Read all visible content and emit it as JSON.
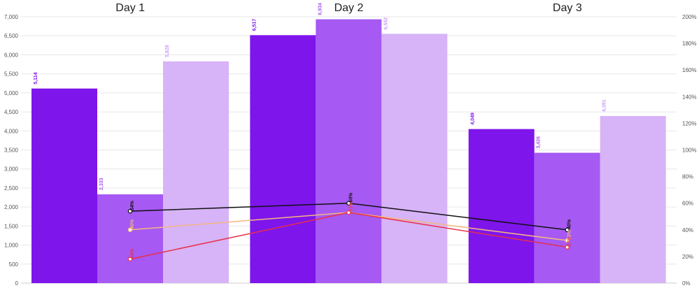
{
  "chart_data": {
    "type": "bar",
    "categories": [
      "Day 1",
      "Day 2",
      "Day 3"
    ],
    "bar_series": [
      {
        "values": [
          5114,
          6517,
          4049
        ],
        "labels": [
          "5,114",
          "6,517",
          "4,049"
        ],
        "color": "#7e15eb"
      },
      {
        "values": [
          2333,
          6934,
          3426
        ],
        "labels": [
          "2,333",
          "6,934",
          "3,426"
        ],
        "color": "#a659f3"
      },
      {
        "values": [
          5828,
          6552,
          4391
        ],
        "labels": [
          "5,828",
          "6,552",
          "4,391"
        ],
        "color": "#d7b3f7"
      }
    ],
    "line_series": [
      {
        "values": [
          54,
          60,
          40
        ],
        "labels": [
          "54%",
          "60%",
          "40%"
        ],
        "color": "#111111"
      },
      {
        "values": [
          40,
          53,
          32
        ],
        "labels": [
          "40%",
          "53%",
          "32%"
        ],
        "color": "#f3b77f"
      },
      {
        "values": [
          18,
          53,
          27
        ],
        "labels": [
          "18%",
          "53%",
          "27%"
        ],
        "color": "#e8304a"
      }
    ],
    "y_left": {
      "ylim": [
        0,
        7000
      ],
      "ticks": [
        "0",
        "500",
        "1,000",
        "1,500",
        "2,000",
        "2,500",
        "3,000",
        "3,500",
        "4,000",
        "4,500",
        "5,000",
        "5,500",
        "6,000",
        "6,500",
        "7,000"
      ]
    },
    "y_right": {
      "ylim": [
        0,
        200
      ],
      "ticks": [
        "0%",
        "20%",
        "40%",
        "60%",
        "80%",
        "100%",
        "120%",
        "140%",
        "160%",
        "180%",
        "200%"
      ]
    },
    "grid": true,
    "legend": "none"
  }
}
